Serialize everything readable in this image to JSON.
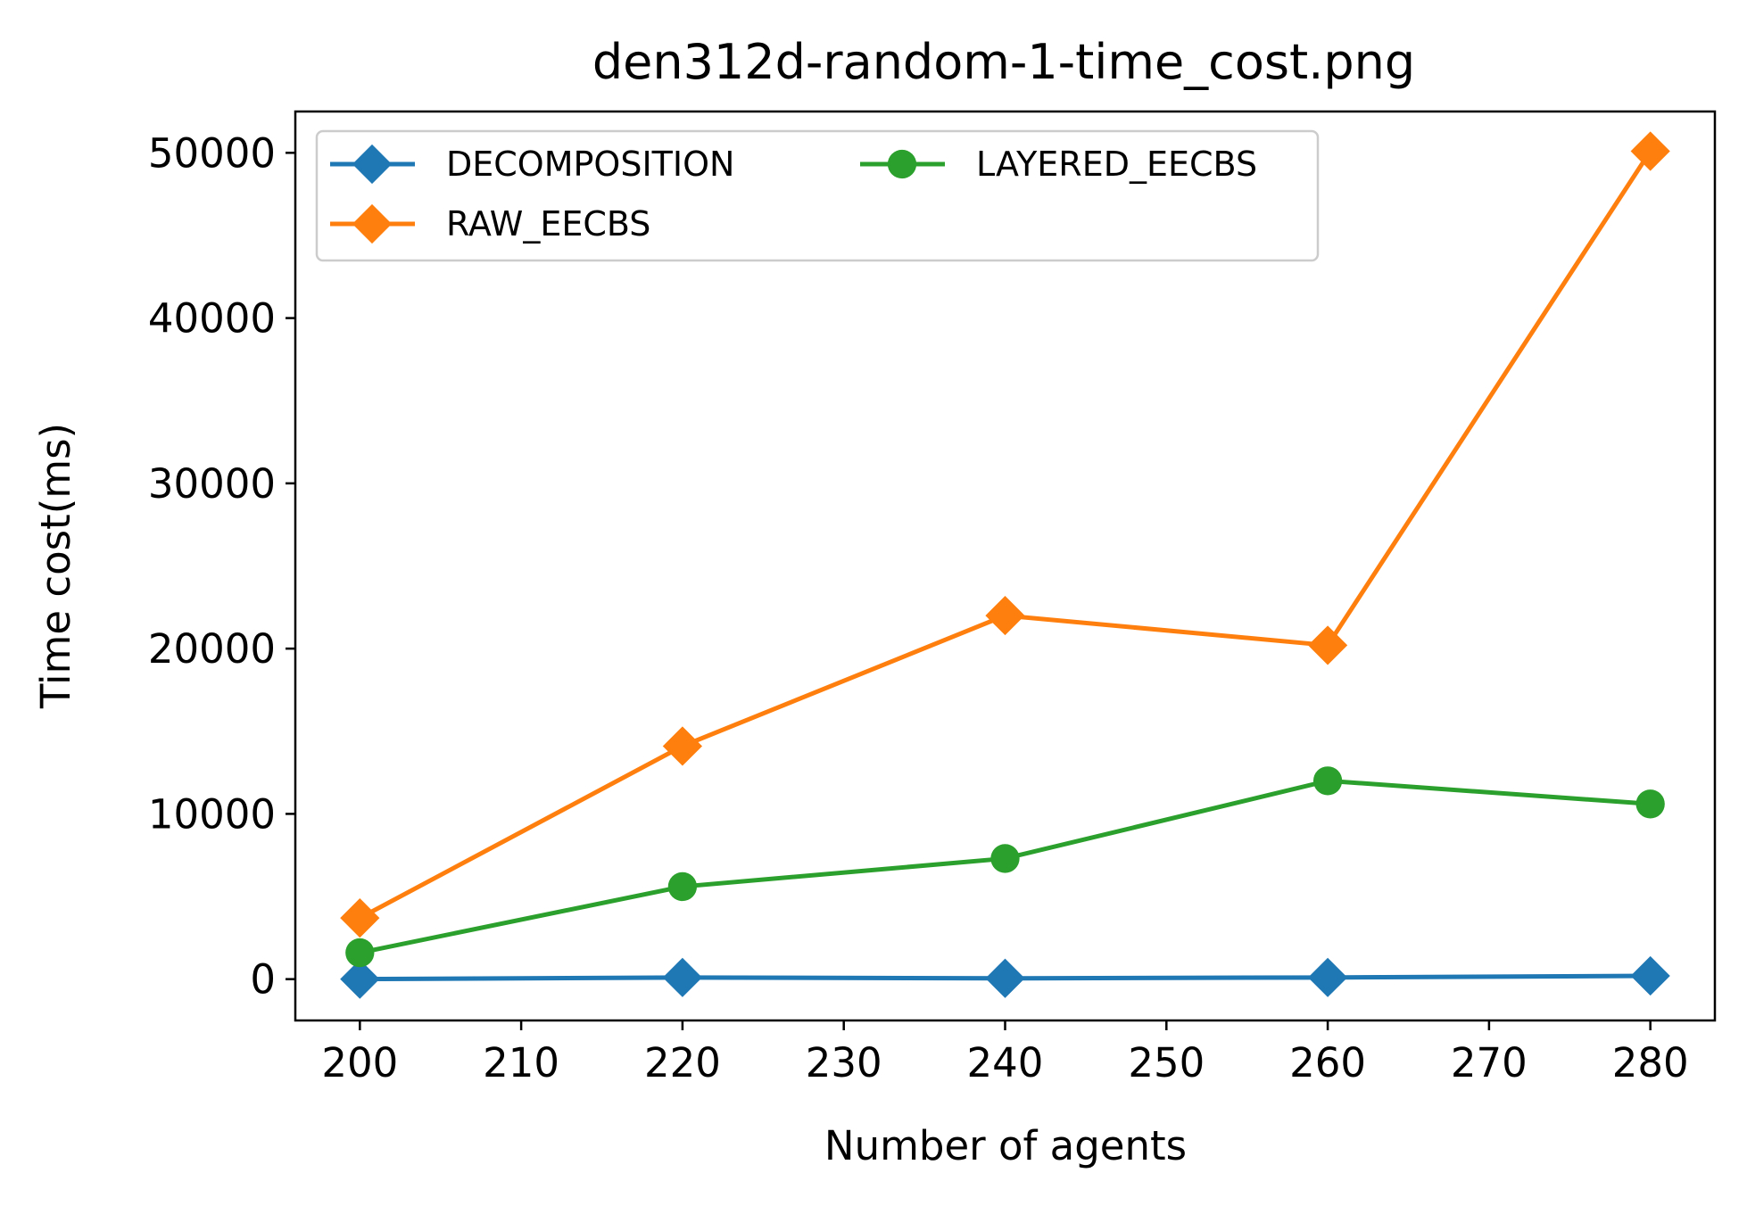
{
  "chart_data": {
    "type": "line",
    "title": "den312d-random-1-time_cost.png",
    "xlabel": "Number of agents",
    "ylabel": "Time cost(ms)",
    "x": [
      200,
      220,
      240,
      260,
      280
    ],
    "xlim": [
      196,
      284
    ],
    "ylim": [
      -2500,
      52500
    ],
    "xticks": [
      "200",
      "210",
      "220",
      "230",
      "240",
      "250",
      "260",
      "270",
      "280"
    ],
    "yticks": [
      "0",
      "10000",
      "20000",
      "30000",
      "40000",
      "50000"
    ],
    "grid": false,
    "legend": {
      "placement": "upper-left",
      "columns": 2
    },
    "series": [
      {
        "name": "DECOMPOSITION",
        "color": "#1f77b4",
        "marker": "diamond",
        "values": [
          0,
          100,
          50,
          100,
          200
        ]
      },
      {
        "name": "RAW_EECBS",
        "color": "#ff7f0e",
        "marker": "diamond",
        "values": [
          3700,
          14100,
          22000,
          20200,
          50100
        ]
      },
      {
        "name": "LAYERED_EECBS",
        "color": "#2ca02c",
        "marker": "circle",
        "values": [
          1600,
          5600,
          7300,
          12000,
          10600
        ]
      }
    ]
  }
}
